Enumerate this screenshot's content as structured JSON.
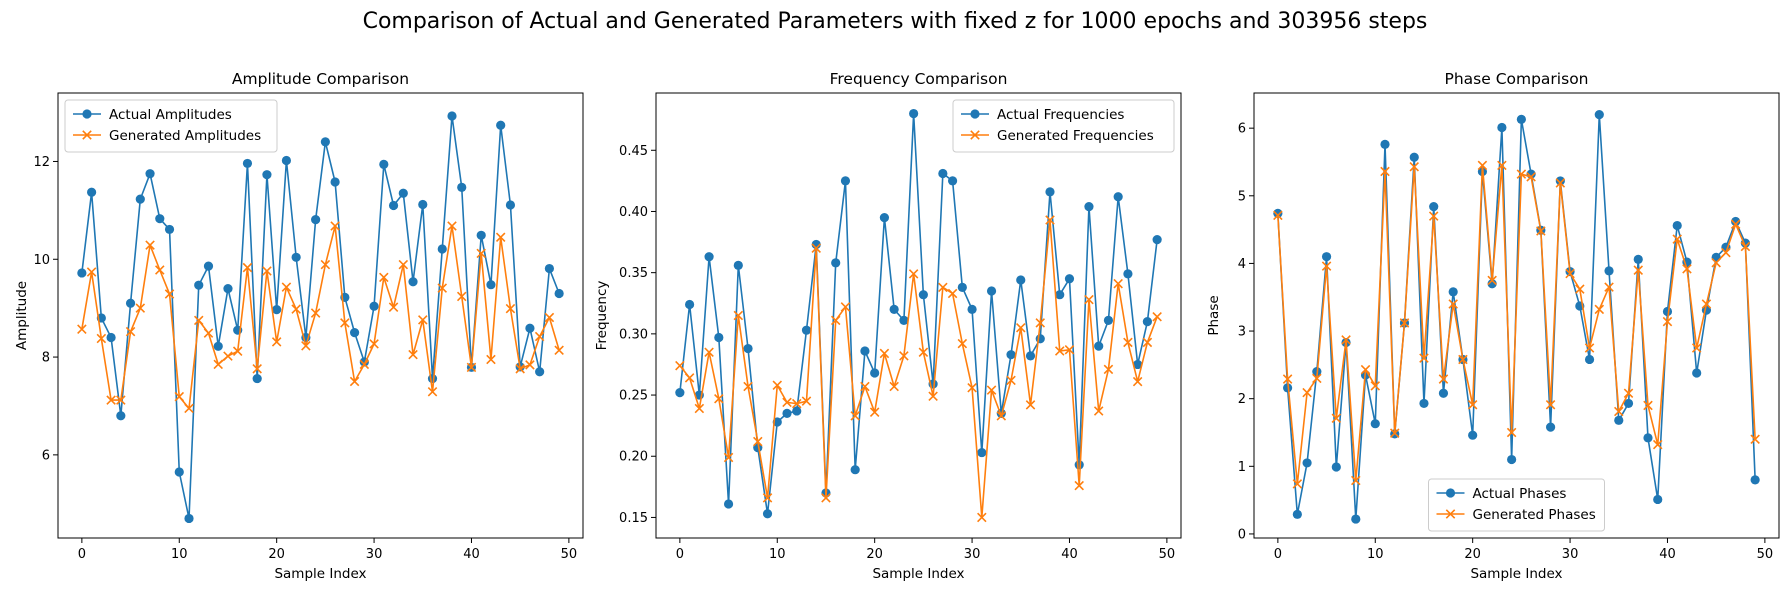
{
  "suptitle": "Comparison of Actual and Generated Parameters with fixed z for 1000 epochs and 303956 steps",
  "colors": {
    "actual": "#1f77b4",
    "generated": "#ff7f0e"
  },
  "chart_data": [
    {
      "type": "line",
      "title": "Amplitude Comparison",
      "xlabel": "Sample Index",
      "ylabel": "Amplitude",
      "xlim": [
        -2.45,
        51.45
      ],
      "ylim": [
        4.3,
        13.4
      ],
      "xticks": [
        0,
        10,
        20,
        30,
        40,
        50
      ],
      "yticks": [
        6,
        8,
        10,
        12
      ],
      "legend": "top-left",
      "grid": false,
      "x": [
        0,
        1,
        2,
        3,
        4,
        5,
        6,
        7,
        8,
        9,
        10,
        11,
        12,
        13,
        14,
        15,
        16,
        17,
        18,
        19,
        20,
        21,
        22,
        23,
        24,
        25,
        26,
        27,
        28,
        29,
        30,
        31,
        32,
        33,
        34,
        35,
        36,
        37,
        38,
        39,
        40,
        41,
        42,
        43,
        44,
        45,
        46,
        47,
        48,
        49
      ],
      "series": [
        {
          "name": "Actual Amplitudes",
          "marker": "circle",
          "values": [
            9.72,
            11.37,
            8.8,
            8.4,
            6.8,
            9.1,
            11.23,
            11.75,
            10.83,
            10.61,
            5.65,
            4.7,
            9.47,
            9.86,
            8.22,
            9.4,
            8.55,
            11.96,
            7.56,
            11.73,
            8.97,
            12.02,
            10.04,
            8.4,
            10.81,
            12.4,
            11.58,
            9.22,
            8.5,
            7.9,
            9.04,
            11.94,
            11.1,
            11.35,
            9.54,
            11.12,
            7.56,
            10.21,
            12.93,
            11.47,
            7.79,
            10.49,
            9.48,
            12.74,
            11.11,
            7.8,
            8.59,
            7.7,
            9.81,
            9.3
          ]
        },
        {
          "name": "Generated Amplitudes",
          "marker": "x",
          "values": [
            8.57,
            9.74,
            8.38,
            7.12,
            7.12,
            8.52,
            9.0,
            10.29,
            9.78,
            9.29,
            7.19,
            6.95,
            8.75,
            8.49,
            7.85,
            8.02,
            8.12,
            9.83,
            7.76,
            9.76,
            8.31,
            9.43,
            8.98,
            8.23,
            8.9,
            9.89,
            10.68,
            8.7,
            7.5,
            7.85,
            8.27,
            9.63,
            9.02,
            9.89,
            8.05,
            8.76,
            7.29,
            9.41,
            10.68,
            9.24,
            7.79,
            10.12,
            7.95,
            10.45,
            8.99,
            7.76,
            7.84,
            8.42,
            8.81,
            8.14
          ]
        }
      ]
    },
    {
      "type": "line",
      "title": "Frequency Comparison",
      "xlabel": "Sample Index",
      "ylabel": "Frequency",
      "xlim": [
        -2.45,
        51.45
      ],
      "ylim": [
        0.1332,
        0.4968
      ],
      "xticks": [
        0,
        10,
        20,
        30,
        40,
        50
      ],
      "yticks": [
        0.15,
        0.2,
        0.25,
        0.3,
        0.35,
        0.4,
        0.45
      ],
      "legend": "top-right",
      "grid": false,
      "x": [
        0,
        1,
        2,
        3,
        4,
        5,
        6,
        7,
        8,
        9,
        10,
        11,
        12,
        13,
        14,
        15,
        16,
        17,
        18,
        19,
        20,
        21,
        22,
        23,
        24,
        25,
        26,
        27,
        28,
        29,
        30,
        31,
        32,
        33,
        34,
        35,
        36,
        37,
        38,
        39,
        40,
        41,
        42,
        43,
        44,
        45,
        46,
        47,
        48,
        49
      ],
      "series": [
        {
          "name": "Actual Frequencies",
          "marker": "circle",
          "values": [
            0.252,
            0.324,
            0.25,
            0.363,
            0.297,
            0.161,
            0.356,
            0.288,
            0.207,
            0.153,
            0.228,
            0.235,
            0.237,
            0.303,
            0.373,
            0.17,
            0.358,
            0.425,
            0.189,
            0.286,
            0.268,
            0.395,
            0.32,
            0.311,
            0.48,
            0.332,
            0.259,
            0.431,
            0.425,
            0.338,
            0.32,
            0.203,
            0.335,
            0.235,
            0.283,
            0.344,
            0.282,
            0.296,
            0.416,
            0.332,
            0.345,
            0.193,
            0.404,
            0.29,
            0.311,
            0.412,
            0.349,
            0.275,
            0.31,
            0.377
          ]
        },
        {
          "name": "Generated Frequencies",
          "marker": "x",
          "values": [
            0.274,
            0.264,
            0.239,
            0.285,
            0.247,
            0.199,
            0.315,
            0.257,
            0.212,
            0.166,
            0.258,
            0.244,
            0.243,
            0.245,
            0.37,
            0.166,
            0.311,
            0.322,
            0.233,
            0.257,
            0.236,
            0.284,
            0.257,
            0.282,
            0.349,
            0.285,
            0.249,
            0.338,
            0.333,
            0.292,
            0.256,
            0.15,
            0.254,
            0.233,
            0.262,
            0.305,
            0.242,
            0.309,
            0.393,
            0.286,
            0.287,
            0.176,
            0.328,
            0.237,
            0.271,
            0.341,
            0.293,
            0.261,
            0.293,
            0.314
          ]
        }
      ]
    },
    {
      "type": "line",
      "title": "Phase Comparison",
      "xlabel": "Sample Index",
      "ylabel": "Phase",
      "xlim": [
        -2.45,
        51.45
      ],
      "ylim": [
        -0.06,
        6.52
      ],
      "xticks": [
        0,
        10,
        20,
        30,
        40,
        50
      ],
      "yticks": [
        0,
        1,
        2,
        3,
        4,
        5,
        6
      ],
      "legend": "bottom-center",
      "grid": false,
      "x": [
        0,
        1,
        2,
        3,
        4,
        5,
        6,
        7,
        8,
        9,
        10,
        11,
        12,
        13,
        14,
        15,
        16,
        17,
        18,
        19,
        20,
        21,
        22,
        23,
        24,
        25,
        26,
        27,
        28,
        29,
        30,
        31,
        32,
        33,
        34,
        35,
        36,
        37,
        38,
        39,
        40,
        41,
        42,
        43,
        44,
        45,
        46,
        47,
        48,
        49
      ],
      "series": [
        {
          "name": "Actual Phases",
          "marker": "circle",
          "values": [
            4.74,
            2.16,
            0.29,
            1.05,
            2.4,
            4.1,
            0.99,
            2.83,
            0.22,
            2.35,
            1.63,
            5.76,
            1.48,
            3.12,
            5.57,
            1.93,
            4.84,
            2.08,
            3.58,
            2.58,
            1.46,
            5.36,
            3.7,
            6.01,
            1.1,
            6.13,
            5.32,
            4.49,
            1.58,
            5.22,
            3.88,
            3.37,
            2.58,
            6.2,
            3.89,
            1.68,
            1.93,
            4.06,
            1.42,
            0.51,
            3.29,
            4.56,
            4.02,
            2.38,
            3.31,
            4.09,
            4.24,
            4.62,
            4.3,
            0.8
          ]
        },
        {
          "name": "Generated Phases",
          "marker": "x",
          "values": [
            4.71,
            2.29,
            0.74,
            2.09,
            2.3,
            3.96,
            1.71,
            2.87,
            0.79,
            2.43,
            2.19,
            5.36,
            1.49,
            3.12,
            5.43,
            2.6,
            4.7,
            2.29,
            3.4,
            2.58,
            1.91,
            5.45,
            3.75,
            5.45,
            1.5,
            5.32,
            5.28,
            4.48,
            1.91,
            5.19,
            3.85,
            3.62,
            2.75,
            3.32,
            3.65,
            1.81,
            2.08,
            3.9,
            1.9,
            1.32,
            3.14,
            4.36,
            3.92,
            2.75,
            3.4,
            4.01,
            4.16,
            4.58,
            4.25,
            1.4
          ]
        }
      ]
    }
  ]
}
